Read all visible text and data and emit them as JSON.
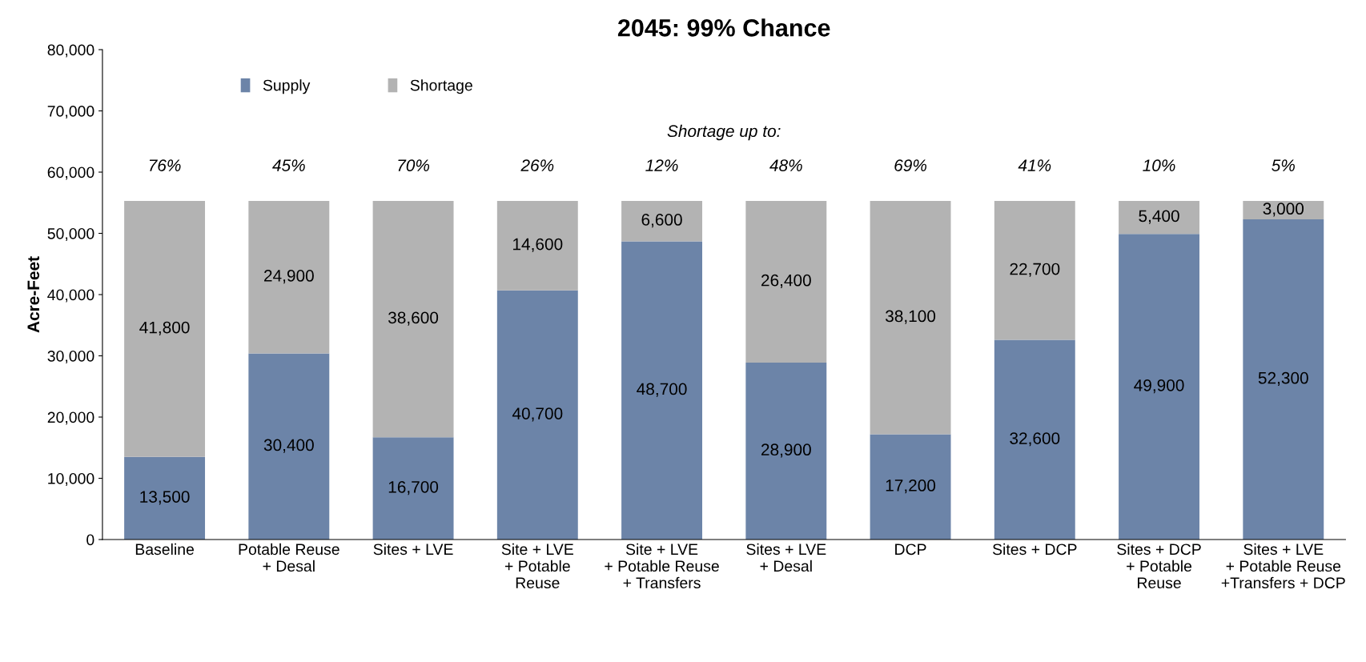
{
  "chart_data": {
    "type": "bar",
    "title": "2045: 99% Chance",
    "ylabel": "Acre-Feet",
    "stacked": true,
    "legend": "top left",
    "grid": false,
    "categories": [
      "Baseline",
      "Potable Reuse\n+ Desal",
      "Sites + LVE",
      "Site + LVE\n+ Potable\nReuse",
      "Site + LVE\n+ Potable Reuse\n+ Transfers",
      "Sites + LVE\n+ Desal",
      "DCP",
      "Sites + DCP",
      "Sites + DCP\n+ Potable\nReuse",
      "Sites + LVE\n+ Potable Reuse\n+Transfers + DCP"
    ],
    "series": [
      {
        "name": "Supply",
        "color": "#6c84a8",
        "values": [
          13500,
          30400,
          16700,
          40700,
          48700,
          28900,
          17200,
          32600,
          49900,
          52300
        ],
        "value_labels": [
          "13,500",
          "30,400",
          "16,700",
          "40,700",
          "48,700",
          "28,900",
          "17,200",
          "32,600",
          "49,900",
          "52,300"
        ]
      },
      {
        "name": "Shortage",
        "color": "#b3b3b3",
        "values": [
          41800,
          24900,
          38600,
          14600,
          6600,
          26400,
          38100,
          22700,
          5400,
          3000
        ],
        "value_labels": [
          "41,800",
          "24,900",
          "38,600",
          "14,600",
          "6,600",
          "26,400",
          "38,100",
          "22,700",
          "5,400",
          "3,000"
        ]
      }
    ],
    "ylim": [
      0,
      80000
    ],
    "yticks": [
      0,
      {
        "value": 10000,
        "label": "10,000"
      },
      {
        "value": 20000,
        "label": "20,000"
      },
      {
        "value": 30000,
        "label": "30,000"
      },
      {
        "value": 40000,
        "label": "40,000"
      },
      {
        "value": 50000,
        "label": "50,000"
      },
      {
        "value": 60000,
        "label": "60,000"
      },
      {
        "value": 70000,
        "label": "70,000"
      },
      {
        "value": 80000,
        "label": "80,000"
      }
    ],
    "annotations": [
      "Shortage up to:",
      "76%",
      "45%",
      "70%",
      "26%",
      "12%",
      "48%",
      "69%",
      "41%",
      "10%",
      "5%"
    ]
  }
}
